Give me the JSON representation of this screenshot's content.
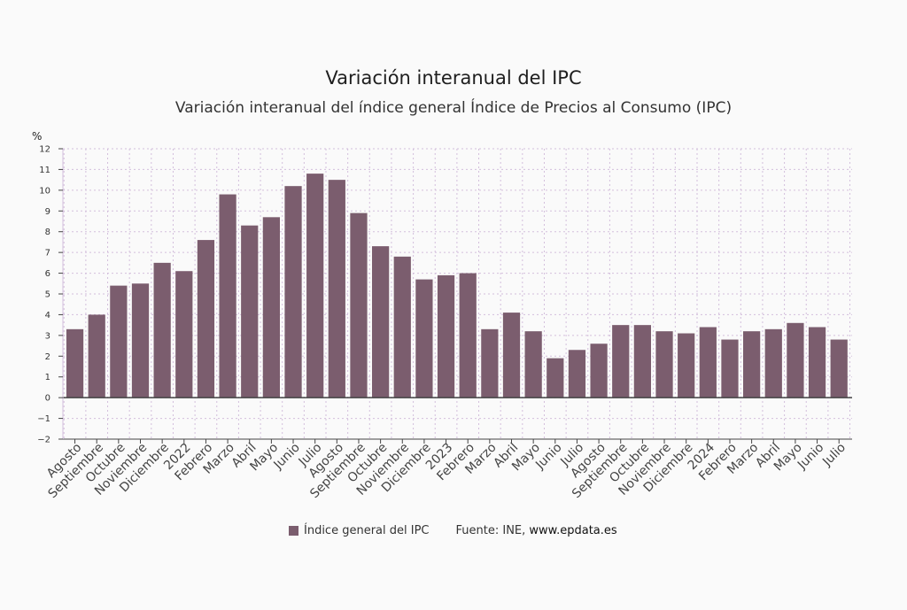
{
  "colors": {
    "bar": "#7b5d6e",
    "grid": "#d3bfdc",
    "axis": "#444444"
  },
  "legend": {
    "label": "Índice general del IPC",
    "source_prefix": "Fuente: INE, ",
    "source_link": "www.epdata.es"
  },
  "chart_data": {
    "type": "bar",
    "title": "Variación interanual del IPC",
    "subtitle": "Variación interanual del índice general Índice de Precios al Consumo (IPC)",
    "ylabel": "%",
    "ylim": [
      -2,
      12
    ],
    "yticks": [
      -2,
      -1,
      0,
      1,
      2,
      3,
      4,
      5,
      6,
      7,
      8,
      9,
      10,
      11,
      12
    ],
    "grid": true,
    "legend_position": "bottom",
    "categories": [
      "Agosto",
      "Septiembre",
      "Octubre",
      "Noviembre",
      "Diciembre",
      "2022",
      "Febrero",
      "Marzo",
      "Abril",
      "Mayo",
      "Junio",
      "Julio",
      "Agosto",
      "Septiembre",
      "Octubre",
      "Noviembre",
      "Diciembre",
      "2023",
      "Febrero",
      "Marzo",
      "Abril",
      "Mayo",
      "Junio",
      "Julio",
      "Agosto",
      "Septiembre",
      "Octubre",
      "Noviembre",
      "Diciembre",
      "2024",
      "Febrero",
      "Marzo",
      "Abril",
      "Mayo",
      "Junio",
      "Julio"
    ],
    "series": [
      {
        "name": "Índice general del IPC",
        "values": [
          3.3,
          4.0,
          5.4,
          5.5,
          6.5,
          6.1,
          7.6,
          9.8,
          8.3,
          8.7,
          10.2,
          10.8,
          10.5,
          8.9,
          7.3,
          6.8,
          5.7,
          5.9,
          6.0,
          3.3,
          4.1,
          3.2,
          1.9,
          2.3,
          2.6,
          3.5,
          3.5,
          3.2,
          3.1,
          3.4,
          2.8,
          3.2,
          3.3,
          3.6,
          3.4,
          2.8
        ]
      }
    ]
  }
}
